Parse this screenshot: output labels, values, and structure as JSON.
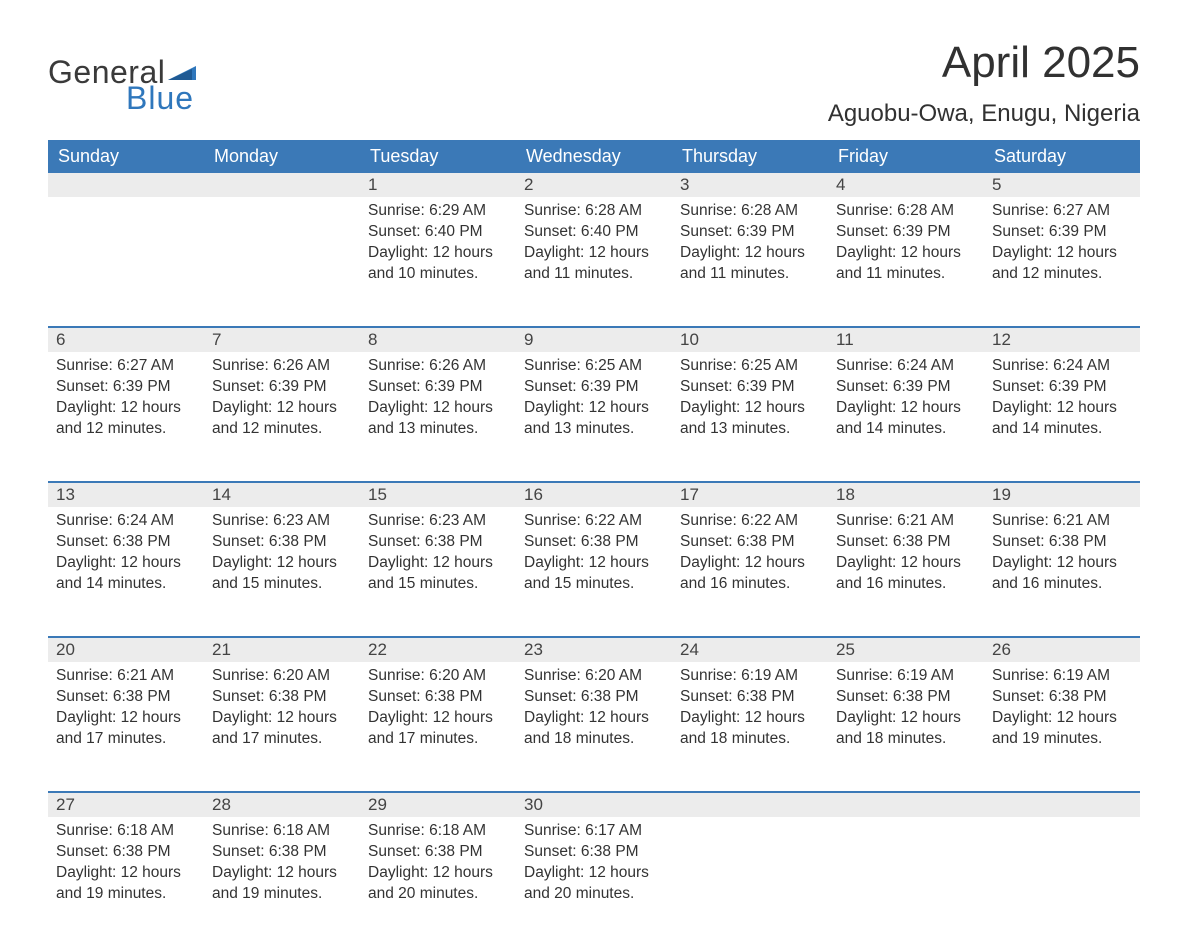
{
  "logo": {
    "text1": "General",
    "text2": "Blue",
    "flag_color": "#2f77bc"
  },
  "title": {
    "month": "April 2025",
    "location": "Aguobu-Owa, Enugu, Nigeria"
  },
  "style": {
    "header_bg": "#3b79b7",
    "header_text": "#ffffff",
    "daynum_bg": "#ececec",
    "row_border": "#3b79b7",
    "body_text": "#333333",
    "title_fontsize_pt": 33,
    "location_fontsize_pt": 18,
    "dayheader_fontsize_pt": 14,
    "cell_fontsize_pt": 12
  },
  "day_headers": [
    "Sunday",
    "Monday",
    "Tuesday",
    "Wednesday",
    "Thursday",
    "Friday",
    "Saturday"
  ],
  "weeks": [
    [
      null,
      null,
      {
        "n": "1",
        "sunrise": "6:29 AM",
        "sunset": "6:40 PM",
        "daylight": "12 hours and 10 minutes."
      },
      {
        "n": "2",
        "sunrise": "6:28 AM",
        "sunset": "6:40 PM",
        "daylight": "12 hours and 11 minutes."
      },
      {
        "n": "3",
        "sunrise": "6:28 AM",
        "sunset": "6:39 PM",
        "daylight": "12 hours and 11 minutes."
      },
      {
        "n": "4",
        "sunrise": "6:28 AM",
        "sunset": "6:39 PM",
        "daylight": "12 hours and 11 minutes."
      },
      {
        "n": "5",
        "sunrise": "6:27 AM",
        "sunset": "6:39 PM",
        "daylight": "12 hours and 12 minutes."
      }
    ],
    [
      {
        "n": "6",
        "sunrise": "6:27 AM",
        "sunset": "6:39 PM",
        "daylight": "12 hours and 12 minutes."
      },
      {
        "n": "7",
        "sunrise": "6:26 AM",
        "sunset": "6:39 PM",
        "daylight": "12 hours and 12 minutes."
      },
      {
        "n": "8",
        "sunrise": "6:26 AM",
        "sunset": "6:39 PM",
        "daylight": "12 hours and 13 minutes."
      },
      {
        "n": "9",
        "sunrise": "6:25 AM",
        "sunset": "6:39 PM",
        "daylight": "12 hours and 13 minutes."
      },
      {
        "n": "10",
        "sunrise": "6:25 AM",
        "sunset": "6:39 PM",
        "daylight": "12 hours and 13 minutes."
      },
      {
        "n": "11",
        "sunrise": "6:24 AM",
        "sunset": "6:39 PM",
        "daylight": "12 hours and 14 minutes."
      },
      {
        "n": "12",
        "sunrise": "6:24 AM",
        "sunset": "6:39 PM",
        "daylight": "12 hours and 14 minutes."
      }
    ],
    [
      {
        "n": "13",
        "sunrise": "6:24 AM",
        "sunset": "6:38 PM",
        "daylight": "12 hours and 14 minutes."
      },
      {
        "n": "14",
        "sunrise": "6:23 AM",
        "sunset": "6:38 PM",
        "daylight": "12 hours and 15 minutes."
      },
      {
        "n": "15",
        "sunrise": "6:23 AM",
        "sunset": "6:38 PM",
        "daylight": "12 hours and 15 minutes."
      },
      {
        "n": "16",
        "sunrise": "6:22 AM",
        "sunset": "6:38 PM",
        "daylight": "12 hours and 15 minutes."
      },
      {
        "n": "17",
        "sunrise": "6:22 AM",
        "sunset": "6:38 PM",
        "daylight": "12 hours and 16 minutes."
      },
      {
        "n": "18",
        "sunrise": "6:21 AM",
        "sunset": "6:38 PM",
        "daylight": "12 hours and 16 minutes."
      },
      {
        "n": "19",
        "sunrise": "6:21 AM",
        "sunset": "6:38 PM",
        "daylight": "12 hours and 16 minutes."
      }
    ],
    [
      {
        "n": "20",
        "sunrise": "6:21 AM",
        "sunset": "6:38 PM",
        "daylight": "12 hours and 17 minutes."
      },
      {
        "n": "21",
        "sunrise": "6:20 AM",
        "sunset": "6:38 PM",
        "daylight": "12 hours and 17 minutes."
      },
      {
        "n": "22",
        "sunrise": "6:20 AM",
        "sunset": "6:38 PM",
        "daylight": "12 hours and 17 minutes."
      },
      {
        "n": "23",
        "sunrise": "6:20 AM",
        "sunset": "6:38 PM",
        "daylight": "12 hours and 18 minutes."
      },
      {
        "n": "24",
        "sunrise": "6:19 AM",
        "sunset": "6:38 PM",
        "daylight": "12 hours and 18 minutes."
      },
      {
        "n": "25",
        "sunrise": "6:19 AM",
        "sunset": "6:38 PM",
        "daylight": "12 hours and 18 minutes."
      },
      {
        "n": "26",
        "sunrise": "6:19 AM",
        "sunset": "6:38 PM",
        "daylight": "12 hours and 19 minutes."
      }
    ],
    [
      {
        "n": "27",
        "sunrise": "6:18 AM",
        "sunset": "6:38 PM",
        "daylight": "12 hours and 19 minutes."
      },
      {
        "n": "28",
        "sunrise": "6:18 AM",
        "sunset": "6:38 PM",
        "daylight": "12 hours and 19 minutes."
      },
      {
        "n": "29",
        "sunrise": "6:18 AM",
        "sunset": "6:38 PM",
        "daylight": "12 hours and 20 minutes."
      },
      {
        "n": "30",
        "sunrise": "6:17 AM",
        "sunset": "6:38 PM",
        "daylight": "12 hours and 20 minutes."
      },
      null,
      null,
      null
    ]
  ],
  "labels": {
    "sunrise": "Sunrise: ",
    "sunset": "Sunset: ",
    "daylight": "Daylight: "
  }
}
